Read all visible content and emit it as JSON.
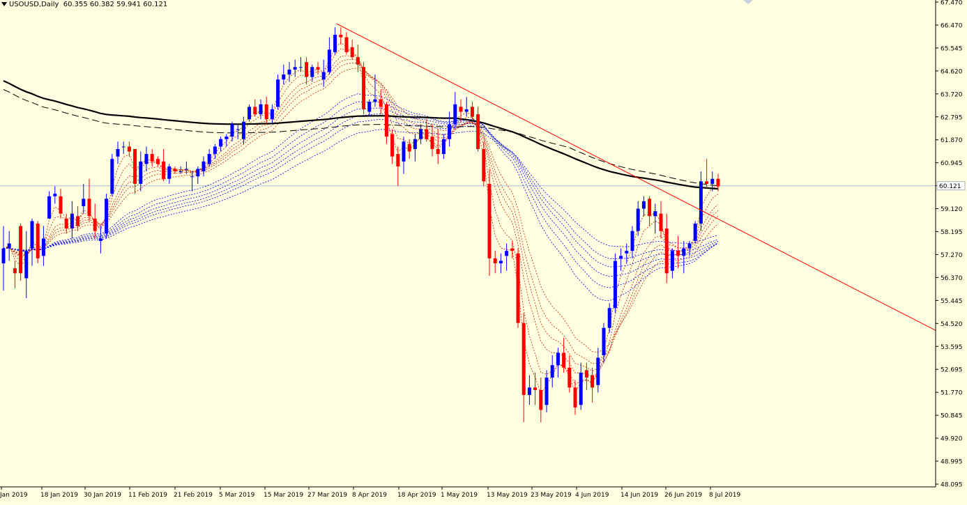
{
  "header": {
    "symbol": "USOUSD,Daily",
    "ohlc": "60.355 60.382 59.941 60.121"
  },
  "price_axis": {
    "ticks": [
      "67.470",
      "66.470",
      "65.545",
      "64.620",
      "63.720",
      "62.795",
      "61.870",
      "60.945",
      "60.020",
      "59.120",
      "58.195",
      "57.270",
      "56.370",
      "55.445",
      "54.520",
      "53.595",
      "52.695",
      "51.770",
      "50.845",
      "49.920",
      "48.995",
      "48.095"
    ],
    "current_price_label": "60.121",
    "current_price": 60.121
  },
  "time_axis": {
    "labels": [
      " Jan 2019",
      "18 Jan 2019",
      "30 Jan 2019",
      "11 Feb 2019",
      "21 Feb 2019",
      "5 Mar 2019",
      "15 Mar 2019",
      "27 Mar 2019",
      "8 Apr 2019",
      "18 Apr 2019",
      "1 May 2019",
      "13 May 2019",
      "23 May 2019",
      "4 Jun 2019",
      "14 Jun 2019",
      "26 Jun 2019",
      "8 Jul 2019"
    ]
  },
  "colors": {
    "background": "#fffee0",
    "bull": "#0000ff",
    "bear": "#ff0000",
    "axis": "#000000",
    "grid_price_line": "#a9c0d6",
    "trendline": "#ff0000",
    "ma_black": "#000000",
    "ma_red_dotted": "#cc2200",
    "ma_blue_dotted": "#0000dd"
  },
  "chart_data": {
    "type": "candlestick",
    "ylim": [
      48.0,
      67.6
    ],
    "candles": [
      [
        57.0,
        58.5,
        55.9,
        57.6
      ],
      [
        57.6,
        58.3,
        57.1,
        57.8
      ],
      [
        56.8,
        57.1,
        56.0,
        56.6
      ],
      [
        58.5,
        58.6,
        56.3,
        56.6
      ],
      [
        56.4,
        58.3,
        55.6,
        57.5
      ],
      [
        57.6,
        58.8,
        56.9,
        58.7
      ],
      [
        58.6,
        58.7,
        57.0,
        57.2
      ],
      [
        57.3,
        58.5,
        56.9,
        58.0
      ],
      [
        58.8,
        59.9,
        58.8,
        59.7
      ],
      [
        59.7,
        60.1,
        59.4,
        59.8
      ],
      [
        59.7,
        60.0,
        58.8,
        59.0
      ],
      [
        58.8,
        59.0,
        58.2,
        58.4
      ],
      [
        58.4,
        59.5,
        58.0,
        59.0
      ],
      [
        58.9,
        59.3,
        58.3,
        58.5
      ],
      [
        59.3,
        60.2,
        59.0,
        59.6
      ],
      [
        59.6,
        60.4,
        58.7,
        58.9
      ],
      [
        58.8,
        59.4,
        58.0,
        58.3
      ],
      [
        57.9,
        58.5,
        57.4,
        58.0
      ],
      [
        58.2,
        59.8,
        58.0,
        59.6
      ],
      [
        59.8,
        61.4,
        59.7,
        61.2
      ],
      [
        61.3,
        61.9,
        61.0,
        61.6
      ],
      [
        61.7,
        61.9,
        61.4,
        61.7
      ],
      [
        61.7,
        61.9,
        61.3,
        61.5
      ],
      [
        61.6,
        61.6,
        59.8,
        60.2
      ],
      [
        60.2,
        61.5,
        59.9,
        61.1
      ],
      [
        61.0,
        61.7,
        60.7,
        61.4
      ],
      [
        61.4,
        61.6,
        60.9,
        61.1
      ],
      [
        61.2,
        61.3,
        60.9,
        61.0
      ],
      [
        61.1,
        61.6,
        60.3,
        60.4
      ],
      [
        60.4,
        61.0,
        60.2,
        60.9
      ],
      [
        60.8,
        60.9,
        60.6,
        60.7
      ],
      [
        60.7,
        60.9,
        60.6,
        60.7
      ],
      [
        60.8,
        61.1,
        60.6,
        60.8
      ],
      [
        60.5,
        60.7,
        59.9,
        60.5
      ],
      [
        60.5,
        60.9,
        60.2,
        60.8
      ],
      [
        60.7,
        61.3,
        60.5,
        61.1
      ],
      [
        61.0,
        61.6,
        60.9,
        61.4
      ],
      [
        61.4,
        61.8,
        61.2,
        61.7
      ],
      [
        61.7,
        62.1,
        61.5,
        62.0
      ],
      [
        62.0,
        62.2,
        61.7,
        62.1
      ],
      [
        62.1,
        62.7,
        61.9,
        62.6
      ],
      [
        62.4,
        62.6,
        62.0,
        62.4
      ],
      [
        62.0,
        62.9,
        61.8,
        62.7
      ],
      [
        62.8,
        63.4,
        62.7,
        63.3
      ],
      [
        63.3,
        63.6,
        62.9,
        63.0
      ],
      [
        63.0,
        63.6,
        62.8,
        63.4
      ],
      [
        63.4,
        63.7,
        62.6,
        62.8
      ],
      [
        62.8,
        63.4,
        62.6,
        63.2
      ],
      [
        63.3,
        64.6,
        63.2,
        64.4
      ],
      [
        64.4,
        65.0,
        64.2,
        64.6
      ],
      [
        64.6,
        65.1,
        64.3,
        64.8
      ],
      [
        64.8,
        65.2,
        64.5,
        64.9
      ],
      [
        64.9,
        65.3,
        64.7,
        64.9
      ],
      [
        65.1,
        65.3,
        64.2,
        64.5
      ],
      [
        64.5,
        65.0,
        64.3,
        64.9
      ],
      [
        64.9,
        65.1,
        64.6,
        64.8
      ],
      [
        64.4,
        65.2,
        64.1,
        64.7
      ],
      [
        64.7,
        66.1,
        64.6,
        65.6
      ],
      [
        65.5,
        66.5,
        65.4,
        66.2
      ],
      [
        66.2,
        66.5,
        65.8,
        66.1
      ],
      [
        66.1,
        66.3,
        65.4,
        65.5
      ],
      [
        65.7,
        66.0,
        65.2,
        65.3
      ],
      [
        65.3,
        65.8,
        64.7,
        65.0
      ],
      [
        64.9,
        65.1,
        63.0,
        63.2
      ],
      [
        63.1,
        63.6,
        62.9,
        63.5
      ],
      [
        63.5,
        64.6,
        63.3,
        63.6
      ],
      [
        63.6,
        64.0,
        63.0,
        63.3
      ],
      [
        63.4,
        63.5,
        61.8,
        62.1
      ],
      [
        62.2,
        62.4,
        61.0,
        61.3
      ],
      [
        61.4,
        61.7,
        60.1,
        60.9
      ],
      [
        61.1,
        62.1,
        60.6,
        61.9
      ],
      [
        61.8,
        62.0,
        61.2,
        61.5
      ],
      [
        61.6,
        62.2,
        61.1,
        62.0
      ],
      [
        62.0,
        62.6,
        61.8,
        62.4
      ],
      [
        62.4,
        62.8,
        61.9,
        62.0
      ],
      [
        62.1,
        62.6,
        61.3,
        61.6
      ],
      [
        61.6,
        62.4,
        61.0,
        61.4
      ],
      [
        61.4,
        62.2,
        61.2,
        62.0
      ],
      [
        62.0,
        63.1,
        61.7,
        62.6
      ],
      [
        62.6,
        63.9,
        62.4,
        63.4
      ],
      [
        63.3,
        63.6,
        62.7,
        63.1
      ],
      [
        63.1,
        63.7,
        62.9,
        63.2
      ],
      [
        63.3,
        63.5,
        62.6,
        62.9
      ],
      [
        63.0,
        63.3,
        61.5,
        61.6
      ],
      [
        61.6,
        61.9,
        60.1,
        60.3
      ],
      [
        60.2,
        60.8,
        56.5,
        57.2
      ],
      [
        57.2,
        57.5,
        56.6,
        57.0
      ],
      [
        57.0,
        57.4,
        56.6,
        57.1
      ],
      [
        57.3,
        57.8,
        56.7,
        57.5
      ],
      [
        57.6,
        57.9,
        57.2,
        57.5
      ],
      [
        57.4,
        57.6,
        54.4,
        54.6
      ],
      [
        54.6,
        55.0,
        50.6,
        51.7
      ],
      [
        51.7,
        52.5,
        51.3,
        52.0
      ],
      [
        52.0,
        52.6,
        51.3,
        51.9
      ],
      [
        51.9,
        52.4,
        50.6,
        51.1
      ],
      [
        51.3,
        52.7,
        51.0,
        52.4
      ],
      [
        52.4,
        53.3,
        52.0,
        52.9
      ],
      [
        52.9,
        53.6,
        52.4,
        53.4
      ],
      [
        53.4,
        54.0,
        52.6,
        52.8
      ],
      [
        52.8,
        53.3,
        51.8,
        52.0
      ],
      [
        52.0,
        52.3,
        50.9,
        51.2
      ],
      [
        51.3,
        53.0,
        51.1,
        52.6
      ],
      [
        52.7,
        53.0,
        51.9,
        52.4
      ],
      [
        52.5,
        52.8,
        51.4,
        52.0
      ],
      [
        52.1,
        53.6,
        51.8,
        53.2
      ],
      [
        53.3,
        54.6,
        53.0,
        54.4
      ],
      [
        54.4,
        55.4,
        54.2,
        55.2
      ],
      [
        55.2,
        57.4,
        55.0,
        57.1
      ],
      [
        57.2,
        57.6,
        56.7,
        57.3
      ],
      [
        57.4,
        57.8,
        57.0,
        57.5
      ],
      [
        57.5,
        58.5,
        57.2,
        58.3
      ],
      [
        58.3,
        59.5,
        58.1,
        59.2
      ],
      [
        59.2,
        59.7,
        58.9,
        59.5
      ],
      [
        59.6,
        59.7,
        58.5,
        58.9
      ],
      [
        58.9,
        59.4,
        58.2,
        59.1
      ],
      [
        59.0,
        59.5,
        58.0,
        58.3
      ],
      [
        58.4,
        59.0,
        56.2,
        56.6
      ],
      [
        56.7,
        57.6,
        56.4,
        57.5
      ],
      [
        57.5,
        58.1,
        56.8,
        57.3
      ],
      [
        57.3,
        57.9,
        56.6,
        57.6
      ],
      [
        57.6,
        57.9,
        57.3,
        57.8
      ],
      [
        57.9,
        58.7,
        57.8,
        58.6
      ],
      [
        58.6,
        60.7,
        58.3,
        60.3
      ],
      [
        60.3,
        61.2,
        60.0,
        60.2
      ],
      [
        60.2,
        60.7,
        59.9,
        60.4
      ],
      [
        60.4,
        60.6,
        59.9,
        60.1
      ]
    ]
  }
}
